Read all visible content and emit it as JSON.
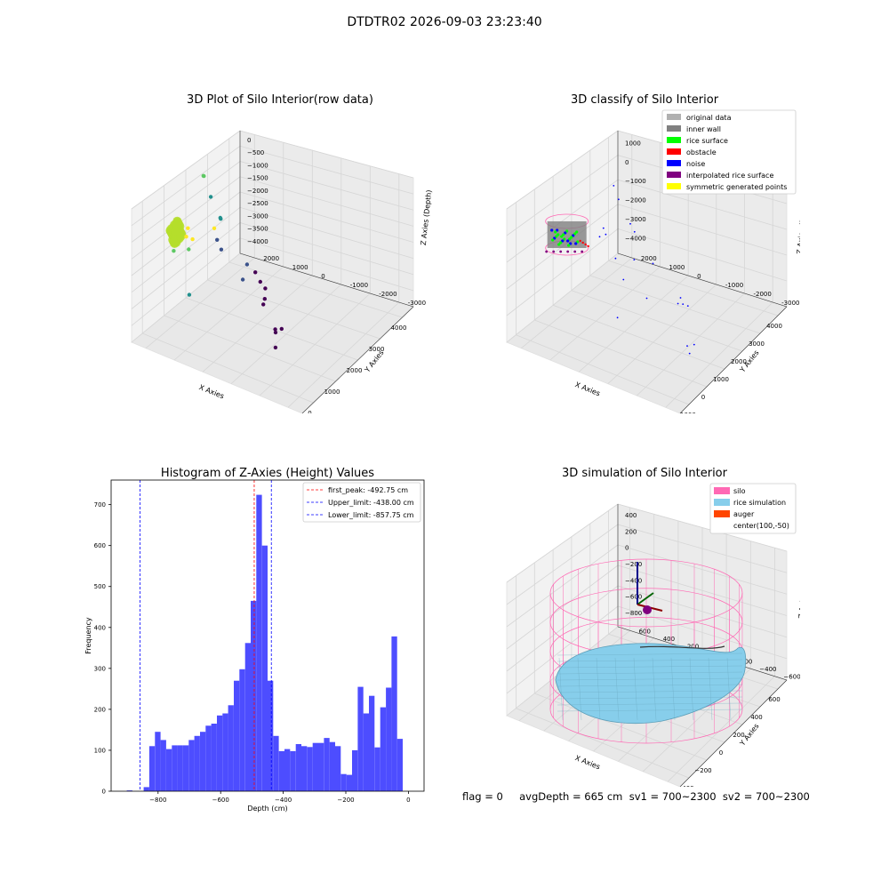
{
  "suptitle": "DTDTR02 2026-09-03 23:23:40",
  "footer": "flag = 0     avgDepth = 665 cm  sv1 = 700~2300  sv2 = 700~2300",
  "colors": {
    "hist_bar": "#4d4dff",
    "first_peak_line": "#ff0000",
    "limit_lines": "#0000ff",
    "silo": "#ff69b4",
    "rice_simulation": "#87ceeb",
    "auger": "#ff4500"
  },
  "chart_data": [
    {
      "type": "scatter",
      "projection": "3d",
      "title": "3D Plot of Silo Interior(row data)",
      "xlabel": "X Axies",
      "ylabel": "Y Axies",
      "zlabel": "Z Axies (Depth)",
      "xticks": [
        "0",
        "1000",
        "2000",
        "3000",
        "4000"
      ],
      "yticks": [
        "-3000",
        "-2000",
        "-1000",
        "0",
        "1000",
        "2000"
      ],
      "zticks": [
        "0",
        "−500",
        "−1000",
        "−1500",
        "−2000",
        "−2500",
        "−3000",
        "−3500",
        "−4000"
      ],
      "colormap": "viridis",
      "dense_cluster": {
        "x": [
          -300,
          300
        ],
        "y": [
          -300,
          300
        ],
        "z": [
          -800,
          -300
        ],
        "color": "#b5de2b"
      },
      "points": [
        {
          "x": 350,
          "y": 0,
          "z": -850
        },
        {
          "x": 500,
          "y": -100,
          "z": -1000
        },
        {
          "x": 700,
          "y": 200,
          "z": -900
        },
        {
          "x": 1200,
          "y": -300,
          "z": -1050
        },
        {
          "x": 200,
          "y": 300,
          "z": -1350
        },
        {
          "x": 600,
          "y": 100,
          "z": -1500
        },
        {
          "x": -200,
          "y": -500,
          "z": -2200
        },
        {
          "x": 3200,
          "y": 1500,
          "z": -1500
        },
        {
          "x": 3250,
          "y": 1550,
          "z": -1550
        },
        {
          "x": 3100,
          "y": 1200,
          "z": -2000
        },
        {
          "x": 3000,
          "y": 800,
          "z": -2500
        },
        {
          "x": 3050,
          "y": 850,
          "z": -2520
        },
        {
          "x": 2700,
          "y": 700,
          "z": -2950
        },
        {
          "x": 2200,
          "y": 200,
          "z": -2700
        },
        {
          "x": 1800,
          "y": -800,
          "z": -3000
        },
        {
          "x": 2400,
          "y": -500,
          "z": -3050
        },
        {
          "x": 2500,
          "y": -700,
          "z": -3300
        },
        {
          "x": 2450,
          "y": -900,
          "z": -3500
        },
        {
          "x": 2400,
          "y": -1100,
          "z": -3600
        },
        {
          "x": 2100,
          "y": -1300,
          "z": -3650
        },
        {
          "x": 1900,
          "y": -1400,
          "z": -3650
        },
        {
          "x": 1200,
          "y": -2300,
          "z": -3600
        },
        {
          "x": 1150,
          "y": -2350,
          "z": -3650
        },
        {
          "x": 1350,
          "y": -2400,
          "z": -3650
        },
        {
          "x": 800,
          "y": -2600,
          "z": -3800
        }
      ]
    },
    {
      "type": "scatter",
      "projection": "3d",
      "title": "3D classify of Silo Interior",
      "xlabel": "X Axies",
      "ylabel": "Y Axies",
      "zlabel": "Z Axies (Depth)",
      "xticks": [
        "−1000",
        "0",
        "1000",
        "2000",
        "3000",
        "4000"
      ],
      "yticks": [
        "-3000",
        "-2000",
        "-1000",
        "0",
        "1000",
        "2000"
      ],
      "zticks": [
        "1000",
        "0",
        "−1000",
        "−2000",
        "−3000",
        "−4000"
      ],
      "legend_position": "upper right",
      "legend": [
        {
          "label": "original data",
          "color": "#b0b0b0"
        },
        {
          "label": "inner wall",
          "color": "#808080"
        },
        {
          "label": "rice surface",
          "color": "#00ff00"
        },
        {
          "label": "obstacle",
          "color": "#ff0000"
        },
        {
          "label": "noise",
          "color": "#0000ff"
        },
        {
          "label": "interpolated rice surface",
          "color": "#800080"
        },
        {
          "label": "symmetric generated points",
          "color": "#ffff00"
        }
      ],
      "noise_points": [
        {
          "x": 3500,
          "y": 1800,
          "z": -1400
        },
        {
          "x": 3600,
          "y": 1700,
          "z": -2000
        },
        {
          "x": 3400,
          "y": 1200,
          "z": -2600
        },
        {
          "x": 3300,
          "y": 1000,
          "z": -2750
        },
        {
          "x": 2300,
          "y": 400,
          "z": -2800
        },
        {
          "x": 2800,
          "y": 100,
          "z": -3200
        },
        {
          "x": 1000,
          "y": 200,
          "z": -1600
        },
        {
          "x": 600,
          "y": -300,
          "z": -1900
        },
        {
          "x": -200,
          "y": -600,
          "z": -2700
        },
        {
          "x": 1500,
          "y": -500,
          "z": -3300
        },
        {
          "x": 2000,
          "y": -1200,
          "z": -3550
        },
        {
          "x": 2100,
          "y": -1300,
          "z": -3600
        },
        {
          "x": 2300,
          "y": -1100,
          "z": -3600
        },
        {
          "x": 2200,
          "y": -1400,
          "z": -3700
        },
        {
          "x": 700,
          "y": -2300,
          "z": -3700
        },
        {
          "x": 900,
          "y": -2400,
          "z": -3750
        },
        {
          "x": 500,
          "y": -2500,
          "z": -3750
        },
        {
          "x": 1300,
          "y": 900,
          "z": -1300
        },
        {
          "x": 1500,
          "y": 900,
          "z": -1100
        },
        {
          "x": 1300,
          "y": 700,
          "z": -1100
        }
      ]
    },
    {
      "type": "bar",
      "title": "Histogram of Z-Axies (Height) Values",
      "xlabel": "Depth (cm)",
      "ylabel": "Frequency",
      "xlim": [
        -950,
        50
      ],
      "ylim": [
        0,
        760
      ],
      "xticks": [
        -800,
        -600,
        -400,
        -200,
        0
      ],
      "xtick_labels": [
        "−800",
        "−600",
        "−400",
        "−200",
        "0"
      ],
      "yticks": [
        0,
        100,
        200,
        300,
        400,
        500,
        600,
        700
      ],
      "bin_start": -900,
      "bin_width": 18,
      "values": [
        2,
        0,
        0,
        10,
        110,
        145,
        125,
        103,
        112,
        112,
        112,
        125,
        135,
        145,
        160,
        165,
        185,
        190,
        210,
        270,
        298,
        362,
        465,
        724,
        600,
        270,
        135,
        98,
        103,
        98,
        115,
        110,
        108,
        118,
        118,
        130,
        120,
        110,
        42,
        40,
        100,
        255,
        190,
        233,
        107,
        205,
        253,
        378,
        128
      ],
      "vlines": [
        {
          "x": -492.75,
          "label": "first_peak: -492.75 cm",
          "color": "#ff0000"
        },
        {
          "x": -438.0,
          "label": "Upper_limit: -438.00 cm",
          "color": "#0000ff"
        },
        {
          "x": -857.75,
          "label": "Lower_limit: -857.75 cm",
          "color": "#0000ff"
        }
      ],
      "legend_position": "upper right"
    },
    {
      "type": "surface",
      "projection": "3d",
      "title": "3D simulation of Silo Interior",
      "xlabel": "X Axies",
      "ylabel": "Y Axies",
      "zlabel": "Z Axies (Depth)",
      "xticks": [
        "−400",
        "−200",
        "0",
        "200",
        "400",
        "600"
      ],
      "yticks": [
        "−600",
        "−400",
        "−200",
        "0",
        "200",
        "400",
        "600"
      ],
      "zticks": [
        "400",
        "200",
        "0",
        "−200",
        "−400",
        "−600",
        "−800"
      ],
      "legend_position": "upper right",
      "legend": [
        {
          "label": "silo",
          "color": "#ff69b4"
        },
        {
          "label": "rice simulation",
          "color": "#87ceeb"
        },
        {
          "label": "auger",
          "color": "#ff4500"
        },
        {
          "label": "center(100,-50)",
          "color": ""
        }
      ],
      "center": [
        100,
        -50
      ]
    }
  ]
}
